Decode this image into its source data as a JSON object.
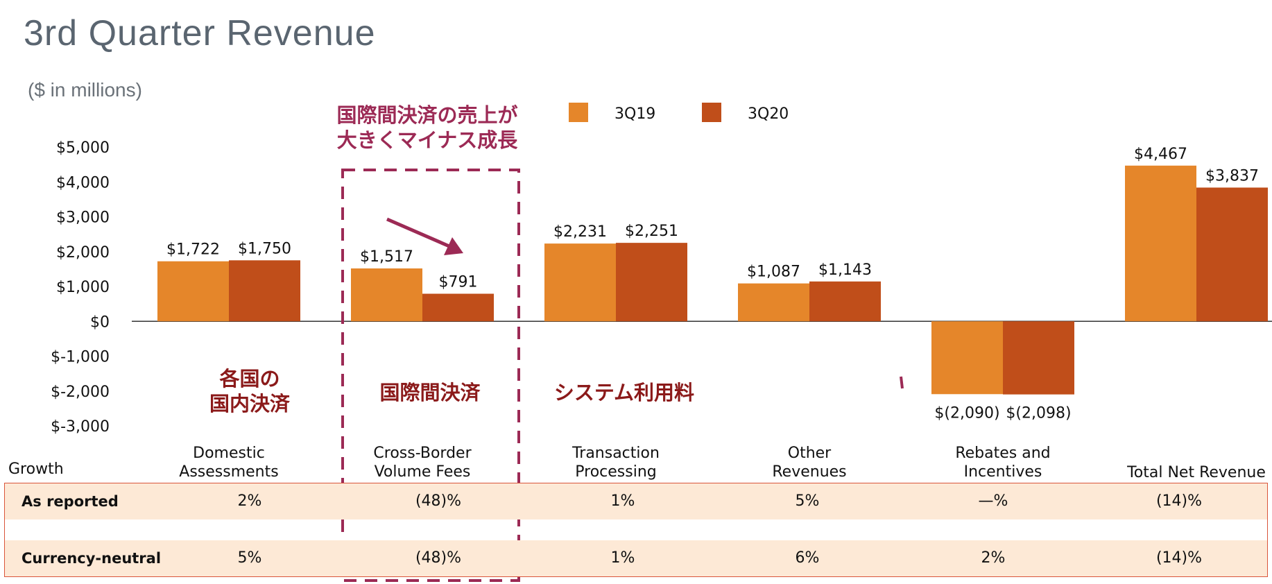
{
  "title": "3rd Quarter Revenue",
  "units": "($ in millions)",
  "chart_data": {
    "type": "bar",
    "categories": [
      [
        "Domestic",
        "Assessments"
      ],
      [
        "Cross-Border",
        "Volume Fees"
      ],
      [
        "Transaction",
        "Processing"
      ],
      [
        "Other",
        "Revenues"
      ],
      [
        "Rebates and",
        "Incentives"
      ],
      [
        "Total Net Revenue"
      ]
    ],
    "series": [
      {
        "name": "3Q19",
        "values": [
          1722,
          1517,
          2231,
          1087,
          -2090,
          4467
        ],
        "labels": [
          "$1,722",
          "$1,517",
          "$2,231",
          "$1,087",
          "$(2,090)",
          "$4,467"
        ]
      },
      {
        "name": "3Q20",
        "values": [
          1750,
          791,
          2251,
          1143,
          -2098,
          3837
        ],
        "labels": [
          "$1,750",
          "$791",
          "$2,251",
          "$1,143",
          "$(2,098)",
          "$3,837"
        ]
      }
    ],
    "colors": [
      "#e5862a",
      "#c04e1a"
    ],
    "ylim": [
      -3000,
      5000
    ],
    "yticks": [
      5000,
      4000,
      3000,
      2000,
      1000,
      0,
      -1000,
      -2000,
      -3000
    ],
    "ytick_labels": [
      "$5,000",
      "$4,000",
      "$3,000",
      "$2,000",
      "$1,000",
      "$0",
      "$-1,000",
      "$-2,000",
      "$-3,000"
    ],
    "legend_position": "top",
    "grid": false
  },
  "annotations": {
    "highlight_color": "#9c2a55",
    "highlight_text": [
      "国際間決済の売上が",
      "大きくマイナス成長"
    ],
    "jp_color": "#8b1a1a",
    "jp_domestic": [
      "各国の",
      "国内決済"
    ],
    "jp_crossborder": "国際間決済",
    "jp_processing": "システム利用料"
  },
  "growth": {
    "label": "Growth",
    "rows": [
      {
        "name": "As reported",
        "values": [
          "2%",
          "(48)%",
          "1%",
          "5%",
          "—%",
          "(14)%"
        ]
      },
      {
        "name": "Currency-neutral",
        "values": [
          "5%",
          "(48)%",
          "1%",
          "6%",
          "2%",
          "(14)%"
        ]
      }
    ]
  }
}
